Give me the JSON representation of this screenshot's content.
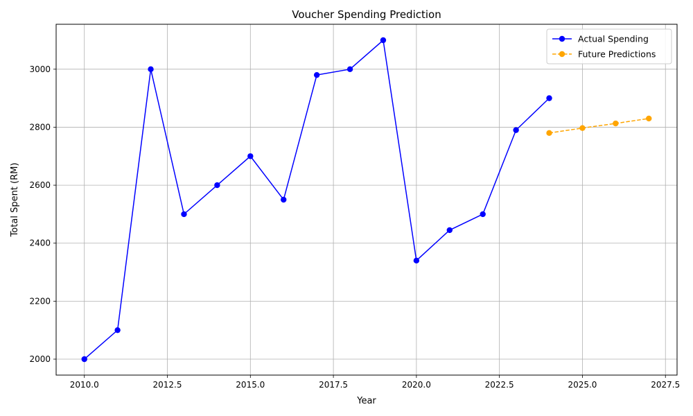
{
  "chart_data": {
    "type": "line",
    "title": "Voucher Spending Prediction",
    "xlabel": "Year",
    "ylabel": "Total Spent (RM)",
    "xlim": [
      2009.15,
      2027.85
    ],
    "ylim": [
      1945,
      3155
    ],
    "xticks": [
      2010.0,
      2012.5,
      2015.0,
      2017.5,
      2020.0,
      2022.5,
      2025.0,
      2027.5
    ],
    "xtick_labels": [
      "2010.0",
      "2012.5",
      "2015.0",
      "2017.5",
      "2020.0",
      "2022.5",
      "2025.0",
      "2027.5"
    ],
    "yticks": [
      2000,
      2200,
      2400,
      2600,
      2800,
      3000
    ],
    "ytick_labels": [
      "2000",
      "2200",
      "2400",
      "2600",
      "2800",
      "3000"
    ],
    "grid": true,
    "legend_position": "top-right",
    "series": [
      {
        "name": "Actual Spending",
        "color": "#0000ff",
        "line_style": "solid",
        "marker": "circle",
        "x": [
          2010,
          2011,
          2012,
          2013,
          2014,
          2015,
          2016,
          2017,
          2018,
          2019,
          2020,
          2021,
          2022,
          2023,
          2024
        ],
        "y": [
          2000,
          2100,
          3000,
          2500,
          2600,
          2700,
          2550,
          2980,
          3000,
          3100,
          2340,
          2445,
          2500,
          2790,
          2900
        ]
      },
      {
        "name": "Future Predictions",
        "color": "#ffa500",
        "line_style": "dashed",
        "marker": "circle",
        "x": [
          2024,
          2025,
          2026,
          2027
        ],
        "y": [
          2780,
          2797,
          2813,
          2830
        ]
      }
    ]
  }
}
